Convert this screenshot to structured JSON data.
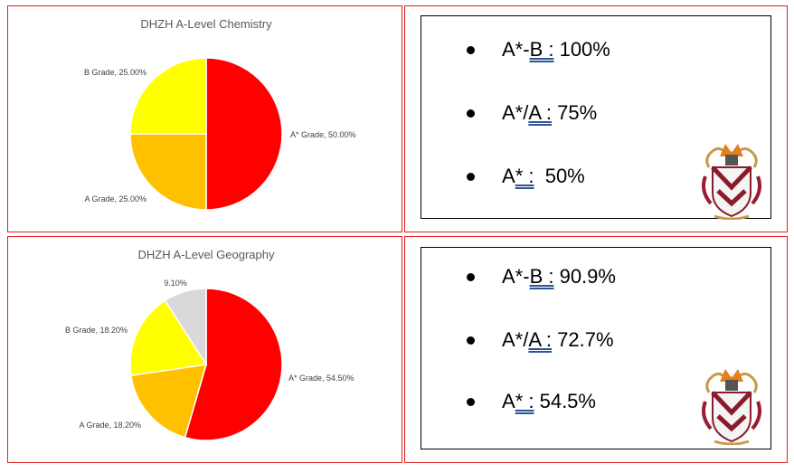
{
  "chart_data": [
    {
      "type": "pie",
      "title": "DHZH A-Level Chemistry",
      "slices": [
        {
          "label": "A* Grade, 50.00%",
          "value": 50.0,
          "color": "#ff0000"
        },
        {
          "label": "A Grade, 25.00%",
          "value": 25.0,
          "color": "#ffc000"
        },
        {
          "label": "B Grade, 25.00%",
          "value": 25.0,
          "color": "#ffff00"
        }
      ]
    },
    {
      "type": "pie",
      "title": "DHZH A-Level Geography",
      "slices": [
        {
          "label": "A* Grade, 54.50%",
          "value": 54.5,
          "color": "#ff0000"
        },
        {
          "label": "A Grade, 18.20%",
          "value": 18.2,
          "color": "#ffc000"
        },
        {
          "label": "B Grade, 18.20%",
          "value": 18.2,
          "color": "#ffff00"
        },
        {
          "label": "9.10%",
          "value": 9.1,
          "color": "#d9d9d9"
        }
      ]
    }
  ],
  "chemistry_stats": [
    {
      "grade": "A*-",
      "grade_u": "B :",
      "value": " 100%"
    },
    {
      "grade": "A*/",
      "grade_u": "A :",
      "value": " 75%"
    },
    {
      "grade": "A",
      "grade_u": "* :",
      "value": "  50%"
    }
  ],
  "geography_stats": [
    {
      "grade": "A*-",
      "grade_u": "B :",
      "value": " 90.9%"
    },
    {
      "grade": "A*/",
      "grade_u": "A :",
      "value": " 72.7%"
    },
    {
      "grade": "A",
      "grade_u": "* :",
      "value": " 54.5%"
    }
  ],
  "icons": {
    "crest": "school-crest-icon"
  }
}
